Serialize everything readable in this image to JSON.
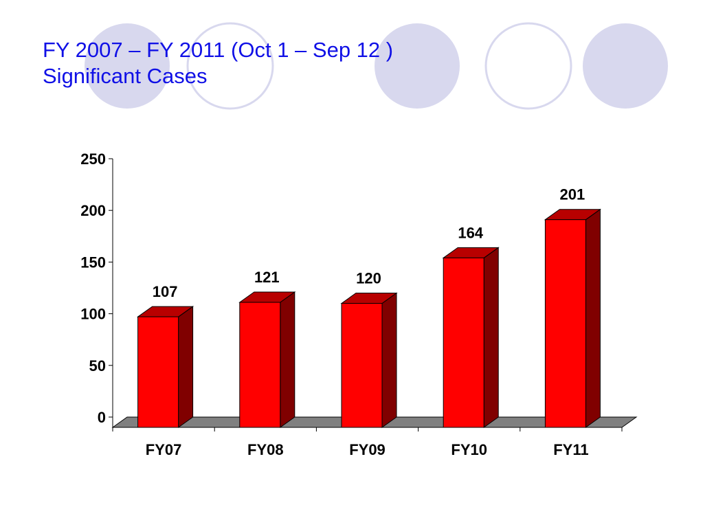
{
  "slide": {
    "title_line1": "FY 2007 – FY 2011 (Oct 1 – Sep 12 )",
    "title_line2": "Significant Cases",
    "title_color": "#1010e6"
  },
  "colors": {
    "bar_front": "#ff0000",
    "bar_side": "#800000",
    "bar_top": "#b80000",
    "floor": "#808080",
    "circle_fill": "#d8d8ee",
    "circle_stroke": "#d8d8ee"
  },
  "chart_data": {
    "type": "bar",
    "style": "3d",
    "categories": [
      "FY07",
      "FY08",
      "FY09",
      "FY10",
      "FY11"
    ],
    "values": [
      107,
      121,
      120,
      164,
      201
    ],
    "title": "",
    "xlabel": "",
    "ylabel": "",
    "ylim": [
      0,
      250
    ],
    "yticks": [
      0,
      50,
      100,
      150,
      200,
      250
    ],
    "grid": false,
    "legend": "none",
    "data_labels": true
  }
}
